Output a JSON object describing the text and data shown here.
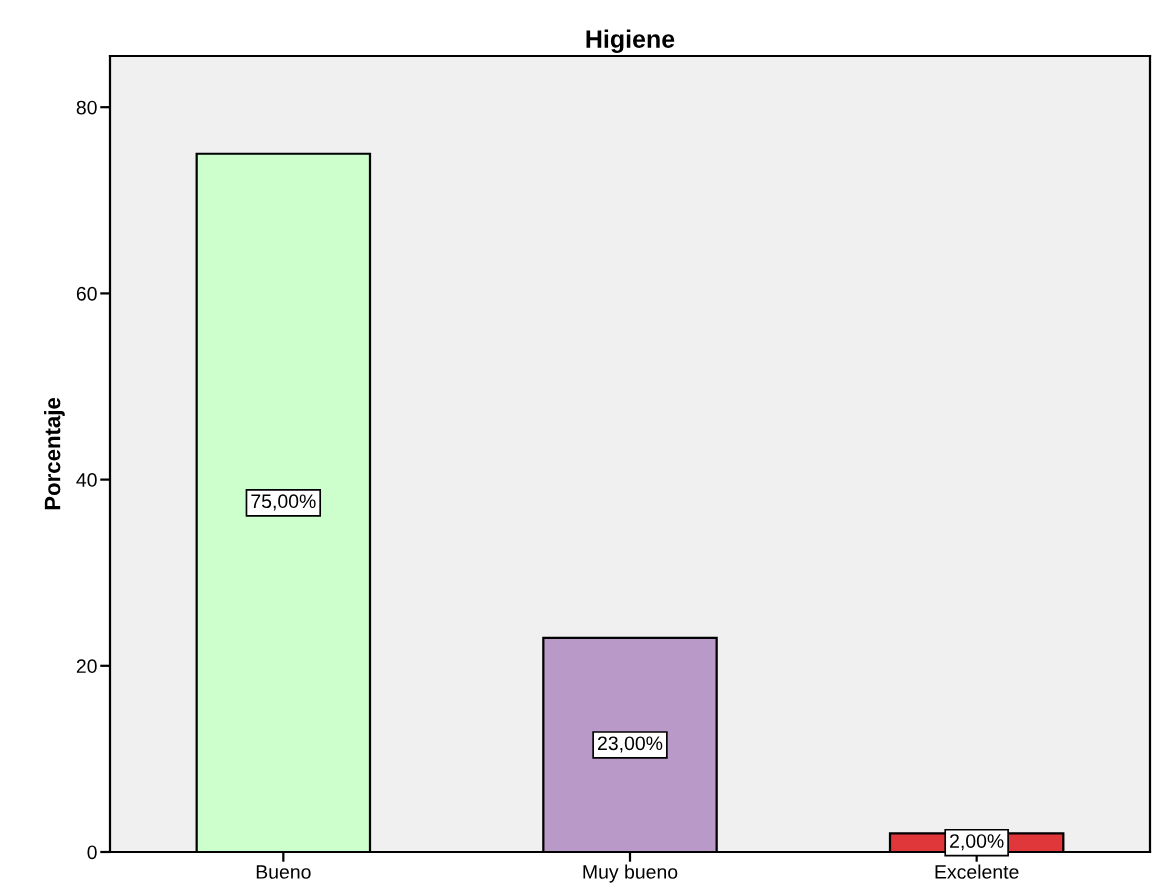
{
  "chart_data": {
    "type": "bar",
    "title": "Higiene",
    "ylabel": "Porcentaje",
    "categories": [
      "Bueno",
      "Muy bueno",
      "Excelente"
    ],
    "values": [
      75,
      23,
      2
    ],
    "colors": [
      "#ccffcc",
      "#b899c8",
      "#e0373b"
    ],
    "value_labels": [
      "75,00%",
      "23,00%",
      "2,00%"
    ],
    "ylim": [
      0,
      85.5
    ],
    "yticks": [
      0,
      20,
      40,
      60,
      80
    ],
    "grid": false,
    "legend": false
  }
}
